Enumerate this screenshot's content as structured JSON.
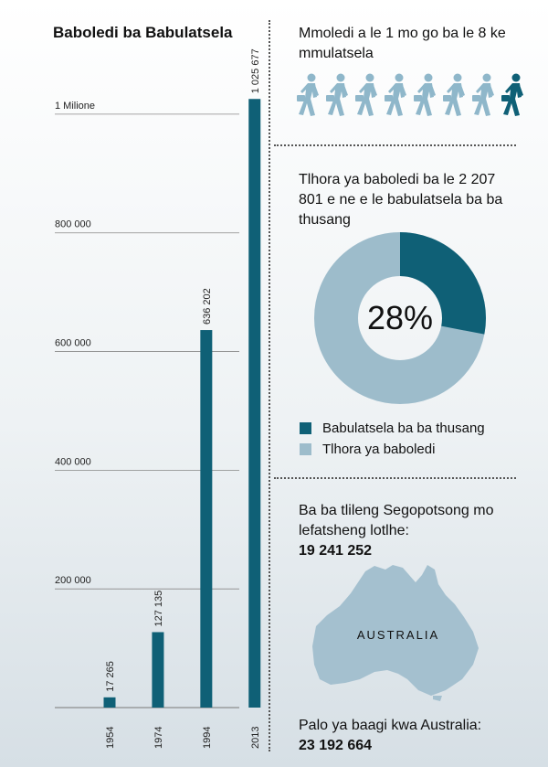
{
  "left_title": "Baboledi ba Babulatsela",
  "chart_data": {
    "type": "bar",
    "title": "Baboledi ba Babulatsela",
    "categories": [
      "1954",
      "1974",
      "1994",
      "2013"
    ],
    "values": [
      17265,
      127135,
      636202,
      1025677
    ],
    "value_labels": [
      "17 265",
      "127 135",
      "636 202",
      "1 025 677"
    ],
    "ylim": [
      0,
      1100000
    ],
    "yticks": [
      200000,
      400000,
      600000,
      800000,
      1000000
    ],
    "ytick_labels": [
      "200 000",
      "400 000",
      "600 000",
      "800 000",
      "1 Milione"
    ],
    "grid": true,
    "bar_color": "#0f6076"
  },
  "ratio": {
    "text": "Mmoledi a le 1 mo go ba le 8 ke mmulatsela",
    "total_people": 8,
    "highlighted": 1,
    "icon": "walking-person-briefcase-icon"
  },
  "share": {
    "text": "Tlhora ya baboledi ba le 2 207 801 e ne e le babulatsela ba ba thusang",
    "percent_label": "28%",
    "percent": 28,
    "legend": [
      "Babulatsela ba ba thusang",
      "Tlhora ya baboledi"
    ]
  },
  "world": {
    "text": "Ba ba tlileng Segopotsong mo lefatsheng lotlhe:",
    "value": "19 241 252"
  },
  "map_label": "AUSTRALIA",
  "australia": {
    "text": "Palo ya baagi kwa Australia:",
    "value": "23 192 664"
  },
  "colors": {
    "dark": "#0f6076",
    "light": "#9dbccb",
    "walker_light": "#8fb7ca",
    "map": "#a4c0cf"
  }
}
